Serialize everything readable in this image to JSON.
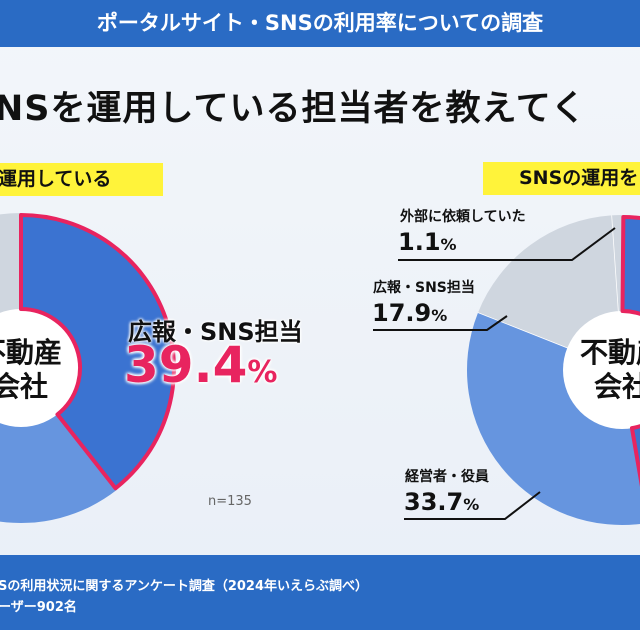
{
  "header": {
    "title": "ポータルサイト・SNSの利用率についての調査"
  },
  "question": "NSを運用している担当者を教えてく",
  "colors": {
    "header_blue": "#2a6bc4",
    "highlight_blue": "#3b73d1",
    "light_blue": "#6695df",
    "gray": "#cfd6df",
    "highlight_border": "#e8245f",
    "tag_yellow": "#fff33a"
  },
  "chart_data": [
    {
      "type": "pie",
      "subtitle": "運用している",
      "center_label": [
        "不動産",
        "会社"
      ],
      "slices": [
        {
          "label": "広報・SNS担当",
          "value": 39.4,
          "highlighted": true
        }
      ],
      "value_suffix": "%",
      "note": "n=135"
    },
    {
      "type": "pie",
      "subtitle": "SNSの運用を",
      "center_label": [
        "不動産",
        "会社"
      ],
      "slices": [
        {
          "label": "外部に依頼していた",
          "value": 1.1
        },
        {
          "label": "広報・SNS担当",
          "value": 17.9
        },
        {
          "label": "経営者・役員",
          "value": 33.7
        }
      ],
      "value_suffix": "%"
    }
  ],
  "footer": {
    "line1": "Sの利用状況に関するアンケート調査（2024年いえらぶ調べ）",
    "line2": "ーザー902名"
  }
}
